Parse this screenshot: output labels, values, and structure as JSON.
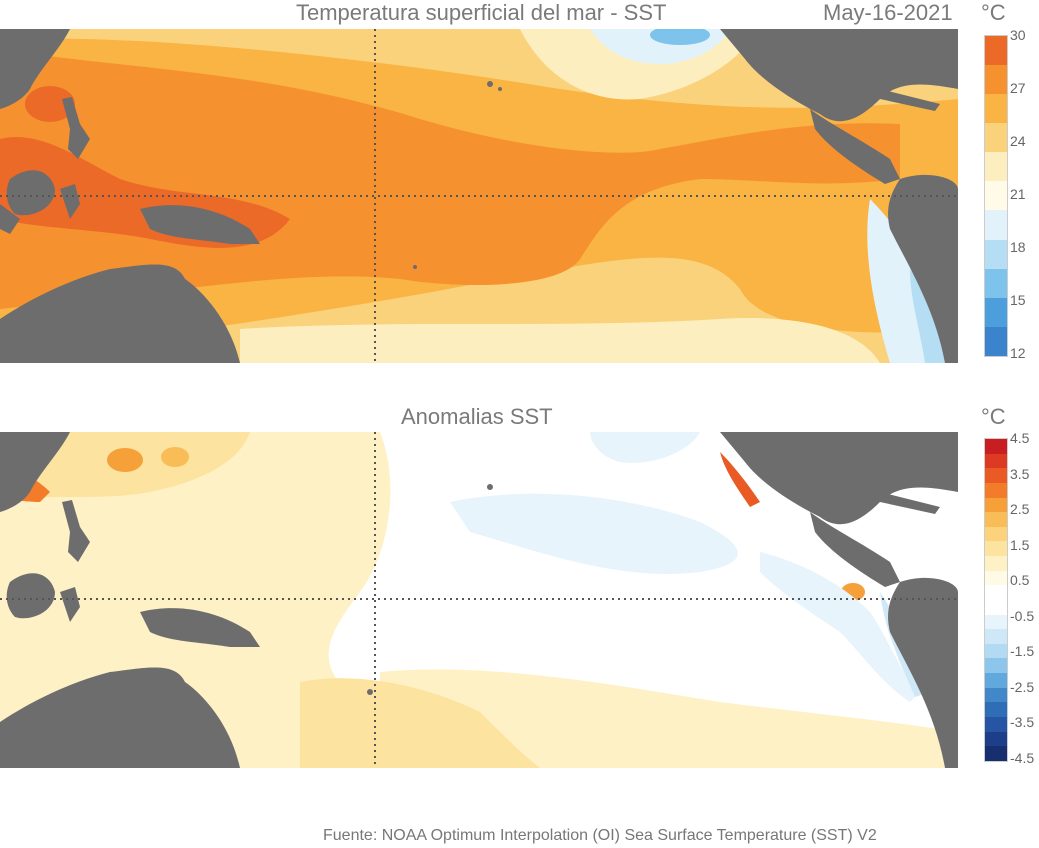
{
  "sst": {
    "title": "Temperatura superficial del mar - SST",
    "date": "May-16-2021",
    "unit": "°C",
    "colorbar": {
      "labels": [
        "30",
        "27",
        "24",
        "21",
        "18",
        "15",
        "12"
      ],
      "colors": [
        "#ec6a28",
        "#f5922f",
        "#f9b443",
        "#fbd27c",
        "#fdeec0",
        "#fffbe8",
        "#e2f2fb",
        "#b5ddf4",
        "#7ec3ec",
        "#4c9fdc",
        "#3b83cc"
      ]
    }
  },
  "anomalies": {
    "title": "Anomalias SST",
    "unit": "°C",
    "colorbar": {
      "labels": [
        "4.5",
        "3.5",
        "2.5",
        "1.5",
        "0.5",
        "-0.5",
        "-1.5",
        "-2.5",
        "-3.5",
        "-4.5"
      ],
      "colors": [
        "#c81e22",
        "#dd3a23",
        "#ea5a24",
        "#f27c2a",
        "#f6a03a",
        "#f9bd57",
        "#fbd37c",
        "#fde3a0",
        "#fff1c6",
        "#fffae6",
        "#ffffff",
        "#ffffff",
        "#e8f4fb",
        "#cfe8f7",
        "#b2daf2",
        "#8cc6ea",
        "#61a9dd",
        "#4288c9",
        "#2f6db7",
        "#2656a3",
        "#1d3f8a",
        "#172f6f"
      ]
    }
  },
  "source": "Fuente: NOAA Optimum Interpolation (OI) Sea Surface Temperature (SST) V2"
}
